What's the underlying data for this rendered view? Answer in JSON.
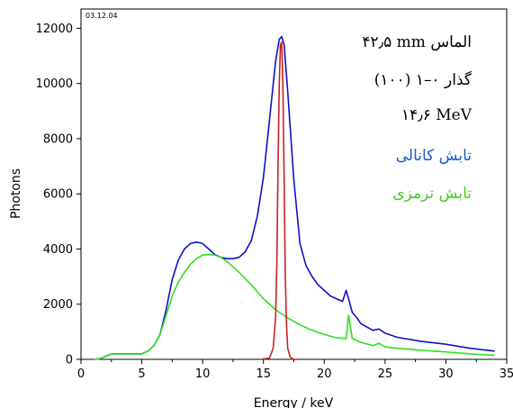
{
  "chart_data": {
    "type": "line",
    "date_stamp": "03.12.04",
    "xlabel": "Energy  /  keV",
    "ylabel": "Photons",
    "xlim": [
      0,
      35
    ],
    "ylim": [
      0,
      12700
    ],
    "xticks": [
      0,
      5,
      10,
      15,
      20,
      25,
      30,
      35
    ],
    "yticks": [
      0,
      2000,
      4000,
      6000,
      8000,
      10000,
      12000
    ],
    "x_tick_labels": [
      "0",
      "5",
      "10",
      "15",
      "20",
      "25",
      "30",
      "35"
    ],
    "y_tick_labels": [
      "0",
      "2000",
      "4000",
      "6000",
      "8000",
      "10000",
      "12000"
    ],
    "grid": false,
    "annotations": [
      {
        "text": "۴۲٫۵ mm الماس",
        "color": "#000000"
      },
      {
        "text": "گذار ۰–۱ (۱۰۰)",
        "color": "#000000"
      },
      {
        "text": "۱۴٫۶ MeV",
        "color": "#000000"
      },
      {
        "text": "تابش کانالی",
        "color": "#1a5fc8"
      },
      {
        "text": "تابش ترمزی",
        "color": "#44cc22"
      }
    ],
    "series": [
      {
        "color": "#1010c8",
        "x": [
          1.0,
          1.5,
          2.0,
          2.5,
          3.0,
          3.5,
          4.0,
          5.0,
          5.5,
          6.0,
          6.5,
          7.0,
          7.5,
          8.0,
          8.5,
          9.0,
          9.5,
          10.0,
          10.5,
          11.0,
          11.5,
          12.0,
          12.5,
          13.0,
          13.5,
          14.0,
          14.5,
          15.0,
          15.5,
          16.0,
          16.3,
          16.5,
          16.7,
          17.0,
          17.5,
          18.0,
          18.5,
          19.0,
          19.5,
          20.0,
          20.5,
          21.0,
          21.5,
          21.8,
          22.0,
          22.3,
          22.7,
          23.0,
          24.0,
          24.5,
          25.0,
          26.0,
          28.0,
          30.0,
          32.0,
          33.0,
          34.0
        ],
        "y": [
          0,
          20,
          100,
          200,
          200,
          200,
          200,
          200,
          300,
          500,
          900,
          1800,
          2900,
          3600,
          4000,
          4200,
          4250,
          4200,
          4000,
          3800,
          3700,
          3650,
          3650,
          3700,
          3900,
          4300,
          5200,
          6600,
          8700,
          10800,
          11600,
          11700,
          11400,
          9700,
          6500,
          4200,
          3400,
          3000,
          2700,
          2500,
          2300,
          2200,
          2100,
          2500,
          2200,
          1700,
          1500,
          1300,
          1050,
          1100,
          950,
          800,
          650,
          550,
          400,
          350,
          300
        ]
      },
      {
        "color": "#33dd22",
        "x": [
          1.0,
          1.5,
          2.0,
          2.5,
          3.0,
          3.5,
          4.0,
          5.0,
          5.5,
          6.0,
          6.5,
          7.0,
          7.5,
          8.0,
          8.5,
          9.0,
          9.5,
          10.0,
          10.5,
          11.0,
          11.5,
          12.0,
          13.0,
          14.0,
          15.0,
          16.0,
          17.0,
          18.0,
          19.0,
          20.0,
          21.0,
          21.8,
          22.0,
          22.3,
          23.0,
          24.0,
          24.5,
          25.0,
          26.0,
          28.0,
          30.0,
          32.0,
          33.0,
          34.0
        ],
        "y": [
          0,
          20,
          100,
          200,
          200,
          200,
          200,
          200,
          300,
          500,
          900,
          1600,
          2300,
          2800,
          3150,
          3450,
          3650,
          3780,
          3800,
          3780,
          3700,
          3550,
          3150,
          2700,
          2200,
          1800,
          1500,
          1250,
          1050,
          900,
          780,
          750,
          1600,
          750,
          620,
          500,
          580,
          450,
          400,
          330,
          270,
          200,
          170,
          150
        ]
      },
      {
        "color": "#cc2222",
        "x": [
          14.8,
          15.5,
          15.8,
          16.0,
          16.1,
          16.2,
          16.3,
          16.4,
          16.5,
          16.6,
          16.7,
          16.8,
          16.9,
          17.0,
          17.2,
          17.5,
          18.0
        ],
        "y": [
          0,
          50,
          400,
          1500,
          3500,
          7000,
          10000,
          11400,
          11500,
          10000,
          6500,
          3000,
          1200,
          400,
          80,
          0,
          0
        ]
      }
    ]
  }
}
